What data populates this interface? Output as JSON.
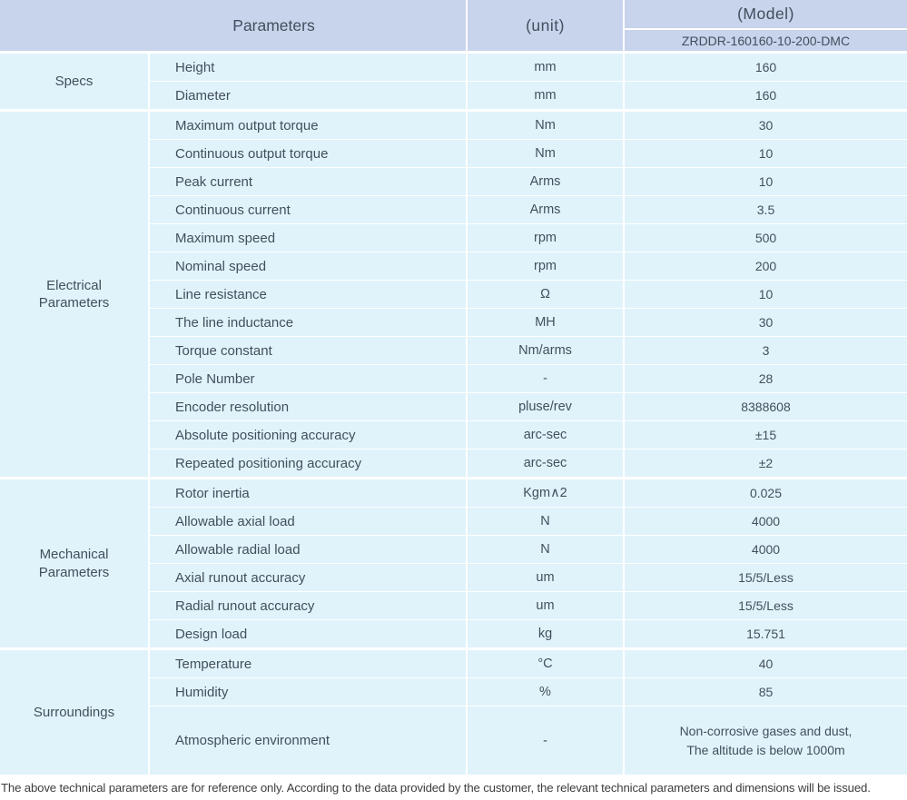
{
  "colors": {
    "header_bg": "#c8d3ec",
    "row_bg": "#e0f3fb",
    "separator": "#ffffff",
    "text": "#424f5c",
    "footer_text": "#3d3d3d"
  },
  "header": {
    "parameters_label": "Parameters",
    "unit_label": "(unit)",
    "model_label": "(Model)",
    "model_value": "ZRDDR-160160-10-200-DMC"
  },
  "sections": [
    {
      "name": "Specs",
      "rows": [
        {
          "parameter": "Height",
          "unit": "mm",
          "value": "160"
        },
        {
          "parameter": "Diameter",
          "unit": "mm",
          "value": "160"
        }
      ]
    },
    {
      "name": "Electrical Parameters",
      "rows": [
        {
          "parameter": "Maximum output torque",
          "unit": "Nm",
          "value": "30"
        },
        {
          "parameter": "Continuous output torque",
          "unit": "Nm",
          "value": "10"
        },
        {
          "parameter": "Peak current",
          "unit": "Arms",
          "value": "10"
        },
        {
          "parameter": "Continuous current",
          "unit": "Arms",
          "value": "3.5"
        },
        {
          "parameter": "Maximum speed",
          "unit": "rpm",
          "value": "500"
        },
        {
          "parameter": "Nominal speed",
          "unit": "rpm",
          "value": "200"
        },
        {
          "parameter": "Line resistance",
          "unit": "Ω",
          "value": "10"
        },
        {
          "parameter": "The line inductance",
          "unit": "MH",
          "value": "30"
        },
        {
          "parameter": "Torque constant",
          "unit": "Nm/arms",
          "value": "3"
        },
        {
          "parameter": "Pole Number",
          "unit": "-",
          "value": "28"
        },
        {
          "parameter": "Encoder resolution",
          "unit": "pluse/rev",
          "value": "8388608"
        },
        {
          "parameter": "Absolute positioning accuracy",
          "unit": "arc-sec",
          "value": "±15"
        },
        {
          "parameter": "Repeated positioning accuracy",
          "unit": "arc-sec",
          "value": "±2"
        }
      ]
    },
    {
      "name": "Mechanical Parameters",
      "rows": [
        {
          "parameter": "Rotor inertia",
          "unit": "Kgm∧2",
          "value": "0.025"
        },
        {
          "parameter": "Allowable axial load",
          "unit": "N",
          "value": "4000"
        },
        {
          "parameter": "Allowable radial load",
          "unit": "N",
          "value": "4000"
        },
        {
          "parameter": "Axial runout accuracy",
          "unit": "um",
          "value": "15/5/Less"
        },
        {
          "parameter": "Radial runout accuracy",
          "unit": "um",
          "value": "15/5/Less"
        },
        {
          "parameter": "Design load",
          "unit": "kg",
          "value": "15.751"
        }
      ]
    },
    {
      "name": "Surroundings",
      "rows": [
        {
          "parameter": "Temperature",
          "unit": "°C",
          "value": "40"
        },
        {
          "parameter": "Humidity",
          "unit": "%",
          "value": "85"
        },
        {
          "parameter": "Atmospheric environment",
          "unit": "-",
          "value": "Non-corrosive gases and dust,\nThe altitude is below 1000m"
        }
      ]
    }
  ],
  "footer": {
    "note": "The above technical parameters are for reference only. According to the data provided by the customer, the relevant technical parameters and dimensions will be issued."
  }
}
